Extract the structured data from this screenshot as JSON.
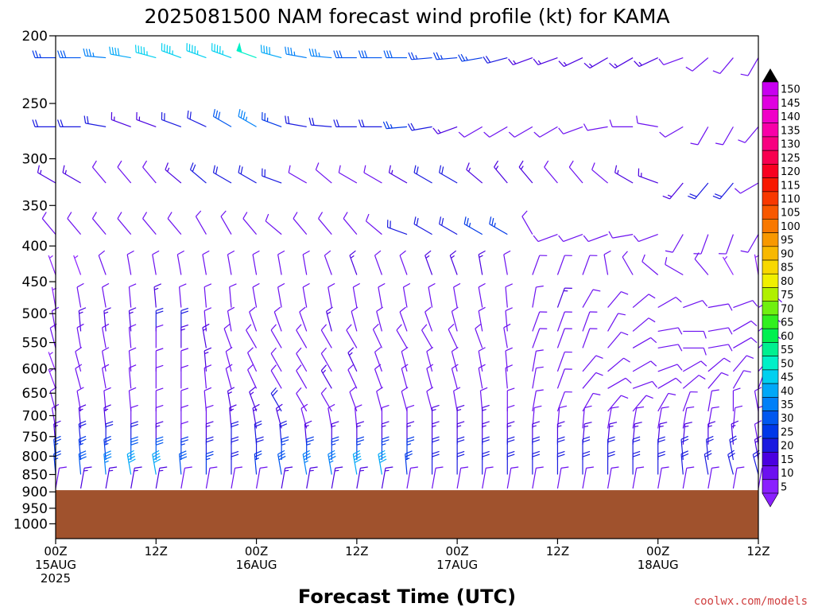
{
  "chart_data": {
    "type": "wind-barb-profile",
    "title": "2025081500 NAM forecast wind profile (kt) for KAMA",
    "xlabel": "Forecast Time (UTC)",
    "ylabel": "",
    "watermark": "coolwx.com/models",
    "y_axis": {
      "scale": "log-pressure",
      "range_hpa": [
        200,
        1050
      ],
      "ticks": [
        200,
        250,
        300,
        350,
        400,
        450,
        500,
        550,
        600,
        650,
        700,
        750,
        800,
        850,
        900,
        950,
        1000
      ]
    },
    "x_axis": {
      "range_hours": [
        0,
        84
      ],
      "ticks": [
        {
          "hour": 0,
          "l1": "00Z",
          "l2": "15AUG",
          "l3": "2025"
        },
        {
          "hour": 12,
          "l1": "12Z",
          "l2": "",
          "l3": ""
        },
        {
          "hour": 24,
          "l1": "00Z",
          "l2": "16AUG",
          "l3": ""
        },
        {
          "hour": 36,
          "l1": "12Z",
          "l2": "",
          "l3": ""
        },
        {
          "hour": 48,
          "l1": "00Z",
          "l2": "17AUG",
          "l3": ""
        },
        {
          "hour": 60,
          "l1": "12Z",
          "l2": "",
          "l3": ""
        },
        {
          "hour": 72,
          "l1": "00Z",
          "l2": "18AUG",
          "l3": ""
        },
        {
          "hour": 84,
          "l1": "12Z",
          "l2": "",
          "l3": ""
        }
      ],
      "barb_interval_hours": 3
    },
    "surface_pressure_hpa": 895,
    "colorbar": {
      "min": 5,
      "max": 150,
      "step": 5,
      "labels": [
        150,
        145,
        140,
        135,
        130,
        125,
        120,
        115,
        110,
        105,
        100,
        95,
        90,
        85,
        80,
        75,
        70,
        65,
        60,
        55,
        50,
        45,
        40,
        35,
        30,
        25,
        20,
        15,
        10,
        5
      ]
    },
    "levels_hpa": [
      215,
      270,
      325,
      385,
      440,
      490,
      530,
      560,
      605,
      640,
      690,
      730,
      770,
      810,
      850,
      890
    ],
    "wind_kt": [
      [
        25,
        30,
        35,
        40,
        45,
        45,
        45,
        45,
        50,
        40,
        35,
        35,
        30,
        30,
        30,
        25,
        25,
        25,
        20,
        15,
        15,
        15,
        15,
        15,
        15,
        10,
        10,
        10,
        10
      ],
      [
        20,
        20,
        20,
        15,
        15,
        20,
        20,
        30,
        35,
        25,
        20,
        20,
        20,
        20,
        25,
        20,
        15,
        10,
        10,
        10,
        10,
        10,
        10,
        10,
        10,
        10,
        10,
        10,
        10
      ],
      [
        15,
        15,
        10,
        10,
        10,
        15,
        20,
        20,
        20,
        20,
        10,
        10,
        10,
        10,
        15,
        20,
        20,
        15,
        15,
        15,
        10,
        10,
        10,
        15,
        15,
        15,
        20,
        20,
        10
      ],
      [
        10,
        10,
        10,
        10,
        10,
        10,
        10,
        10,
        10,
        10,
        10,
        10,
        10,
        10,
        20,
        20,
        20,
        25,
        25,
        10,
        10,
        10,
        10,
        10,
        10,
        10,
        10,
        10,
        10
      ],
      [
        5,
        5,
        10,
        10,
        10,
        10,
        10,
        10,
        10,
        10,
        10,
        10,
        15,
        10,
        10,
        15,
        15,
        15,
        10,
        10,
        10,
        10,
        10,
        10,
        10,
        10,
        10,
        5,
        5
      ],
      [
        5,
        10,
        10,
        10,
        15,
        10,
        10,
        10,
        10,
        10,
        10,
        10,
        10,
        10,
        10,
        10,
        10,
        10,
        10,
        10,
        15,
        10,
        10,
        10,
        10,
        10,
        10,
        10,
        10
      ],
      [
        10,
        15,
        15,
        15,
        20,
        20,
        10,
        10,
        10,
        10,
        10,
        15,
        10,
        10,
        10,
        10,
        10,
        10,
        10,
        10,
        10,
        10,
        10,
        10,
        10,
        10,
        10,
        10,
        10
      ],
      [
        10,
        10,
        10,
        10,
        10,
        15,
        15,
        10,
        10,
        10,
        10,
        10,
        10,
        10,
        10,
        10,
        10,
        10,
        10,
        10,
        10,
        10,
        10,
        10,
        10,
        10,
        10,
        10,
        10
      ],
      [
        5,
        10,
        10,
        10,
        10,
        10,
        15,
        10,
        10,
        10,
        10,
        10,
        15,
        10,
        10,
        10,
        10,
        10,
        10,
        10,
        10,
        10,
        10,
        10,
        10,
        10,
        10,
        10,
        10
      ],
      [
        5,
        10,
        10,
        10,
        10,
        10,
        10,
        10,
        10,
        10,
        10,
        15,
        10,
        10,
        10,
        10,
        10,
        10,
        10,
        10,
        10,
        10,
        10,
        10,
        10,
        10,
        10,
        10,
        10
      ],
      [
        10,
        10,
        10,
        10,
        10,
        10,
        10,
        15,
        15,
        20,
        10,
        10,
        10,
        10,
        10,
        10,
        10,
        10,
        10,
        10,
        10,
        10,
        10,
        10,
        10,
        10,
        10,
        10,
        10
      ],
      [
        10,
        15,
        15,
        10,
        10,
        10,
        10,
        15,
        15,
        15,
        10,
        10,
        10,
        10,
        10,
        15,
        15,
        15,
        10,
        10,
        10,
        10,
        10,
        10,
        10,
        10,
        10,
        10,
        10
      ],
      [
        15,
        20,
        20,
        20,
        15,
        10,
        15,
        20,
        20,
        20,
        15,
        15,
        15,
        15,
        15,
        15,
        15,
        15,
        15,
        15,
        15,
        15,
        15,
        15,
        15,
        15,
        15,
        15,
        10
      ],
      [
        25,
        25,
        25,
        30,
        30,
        25,
        20,
        20,
        20,
        25,
        25,
        25,
        25,
        25,
        25,
        20,
        20,
        20,
        20,
        20,
        20,
        20,
        20,
        20,
        20,
        20,
        20,
        20,
        15
      ],
      [
        25,
        30,
        35,
        40,
        40,
        30,
        25,
        20,
        25,
        30,
        35,
        35,
        40,
        40,
        25,
        20,
        20,
        20,
        20,
        20,
        20,
        20,
        20,
        20,
        20,
        20,
        20,
        20,
        20
      ],
      [
        10,
        15,
        15,
        15,
        15,
        10,
        10,
        10,
        10,
        15,
        15,
        15,
        15,
        15,
        10,
        10,
        10,
        10,
        10,
        10,
        10,
        10,
        10,
        10,
        10,
        10,
        10,
        10,
        10
      ]
    ],
    "wind_dir_deg": [
      [
        270,
        270,
        275,
        280,
        285,
        290,
        290,
        290,
        290,
        285,
        280,
        275,
        270,
        270,
        270,
        265,
        265,
        260,
        255,
        250,
        250,
        245,
        240,
        240,
        245,
        250,
        230,
        220,
        210
      ],
      [
        270,
        270,
        280,
        290,
        290,
        290,
        295,
        300,
        300,
        290,
        280,
        275,
        270,
        270,
        265,
        260,
        250,
        240,
        240,
        240,
        240,
        250,
        260,
        270,
        280,
        240,
        210,
        210,
        220
      ],
      [
        300,
        300,
        320,
        320,
        320,
        310,
        310,
        300,
        300,
        290,
        300,
        310,
        300,
        300,
        300,
        300,
        300,
        310,
        320,
        320,
        320,
        320,
        310,
        300,
        290,
        220,
        220,
        220,
        240
      ],
      [
        320,
        320,
        320,
        320,
        320,
        320,
        330,
        330,
        320,
        310,
        320,
        320,
        320,
        310,
        290,
        300,
        300,
        300,
        300,
        330,
        250,
        250,
        250,
        260,
        250,
        210,
        200,
        200,
        210
      ],
      [
        340,
        340,
        340,
        350,
        350,
        350,
        350,
        350,
        350,
        350,
        350,
        340,
        340,
        340,
        340,
        340,
        340,
        350,
        350,
        20,
        20,
        20,
        350,
        330,
        310,
        300,
        320,
        330,
        350
      ],
      [
        350,
        350,
        350,
        355,
        355,
        355,
        355,
        355,
        350,
        350,
        350,
        350,
        350,
        350,
        350,
        350,
        350,
        350,
        355,
        10,
        20,
        30,
        40,
        50,
        60,
        70,
        80,
        70,
        60
      ],
      [
        350,
        355,
        355,
        355,
        360,
        360,
        355,
        350,
        340,
        340,
        340,
        345,
        345,
        345,
        340,
        340,
        345,
        350,
        355,
        20,
        20,
        20,
        30,
        50,
        80,
        90,
        80,
        60,
        50
      ],
      [
        345,
        350,
        350,
        355,
        360,
        360,
        350,
        340,
        330,
        330,
        330,
        330,
        330,
        335,
        330,
        330,
        335,
        340,
        350,
        20,
        20,
        20,
        40,
        60,
        80,
        90,
        80,
        60,
        50
      ],
      [
        340,
        345,
        350,
        355,
        360,
        360,
        355,
        345,
        335,
        330,
        330,
        330,
        335,
        340,
        345,
        345,
        345,
        350,
        355,
        10,
        20,
        40,
        50,
        60,
        70,
        60,
        50,
        40,
        40
      ],
      [
        340,
        345,
        350,
        355,
        360,
        360,
        355,
        345,
        335,
        330,
        330,
        330,
        335,
        340,
        345,
        345,
        345,
        350,
        355,
        10,
        20,
        40,
        60,
        70,
        60,
        50,
        40,
        30,
        20
      ],
      [
        345,
        350,
        355,
        355,
        360,
        360,
        355,
        350,
        340,
        330,
        330,
        330,
        340,
        345,
        345,
        345,
        350,
        355,
        360,
        10,
        20,
        30,
        40,
        40,
        30,
        20,
        10,
        360,
        350
      ],
      [
        350,
        355,
        355,
        360,
        360,
        360,
        360,
        355,
        350,
        345,
        345,
        350,
        355,
        360,
        360,
        360,
        360,
        360,
        360,
        5,
        5,
        5,
        10,
        10,
        10,
        10,
        10,
        5,
        360
      ],
      [
        355,
        355,
        360,
        360,
        360,
        360,
        360,
        360,
        355,
        355,
        355,
        360,
        360,
        360,
        360,
        360,
        360,
        360,
        360,
        360,
        360,
        5,
        5,
        5,
        5,
        5,
        360,
        355,
        350
      ],
      [
        355,
        355,
        355,
        360,
        360,
        360,
        360,
        360,
        360,
        360,
        360,
        360,
        360,
        360,
        360,
        360,
        360,
        360,
        360,
        360,
        360,
        360,
        360,
        360,
        360,
        355,
        355,
        350,
        350
      ],
      [
        355,
        355,
        355,
        350,
        350,
        355,
        360,
        360,
        355,
        350,
        350,
        350,
        350,
        350,
        355,
        360,
        360,
        360,
        360,
        360,
        360,
        360,
        360,
        360,
        360,
        355,
        350,
        345,
        345
      ],
      [
        10,
        10,
        10,
        10,
        10,
        10,
        10,
        10,
        10,
        10,
        10,
        10,
        10,
        10,
        10,
        10,
        10,
        10,
        10,
        10,
        10,
        10,
        10,
        10,
        10,
        10,
        10,
        10,
        10
      ]
    ]
  }
}
